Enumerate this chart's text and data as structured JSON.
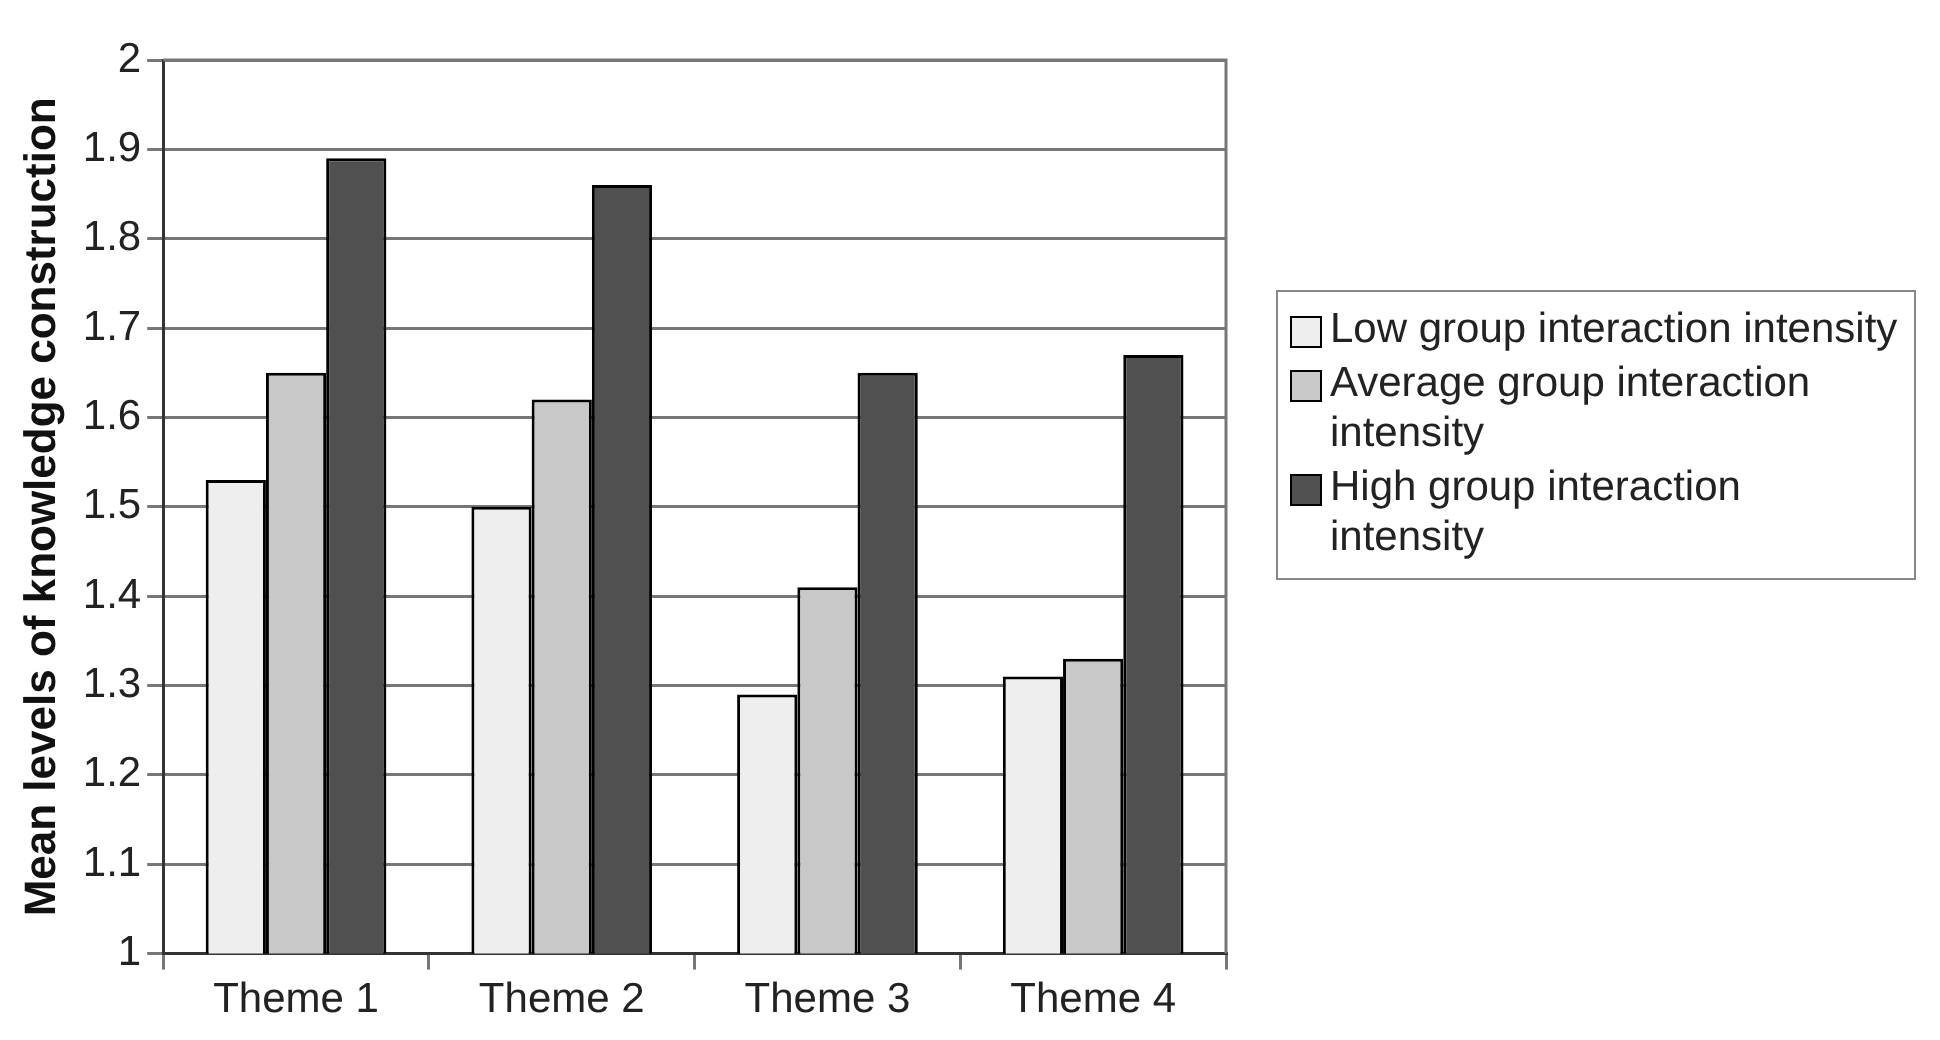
{
  "chart_data": {
    "type": "bar",
    "ylabel": "Mean levels of knowledge construction",
    "categories": [
      "Theme 1",
      "Theme 2",
      "Theme 3",
      "Theme 4"
    ],
    "series": [
      {
        "name": "Low group interaction intensity",
        "color": "#eeeeee",
        "values": [
          1.53,
          1.5,
          1.29,
          1.31
        ]
      },
      {
        "name": "Average group interaction intensity",
        "color": "#c8c8c8",
        "values": [
          1.65,
          1.62,
          1.41,
          1.33
        ]
      },
      {
        "name": "High group interaction intensity",
        "color": "#505050",
        "values": [
          1.89,
          1.86,
          1.65,
          1.67
        ]
      }
    ],
    "ylim": [
      1,
      2
    ],
    "yticks": [
      1,
      1.1,
      1.2,
      1.3,
      1.4,
      1.5,
      1.6,
      1.7,
      1.8,
      1.9,
      2
    ],
    "grid": "y",
    "legend": "right"
  }
}
